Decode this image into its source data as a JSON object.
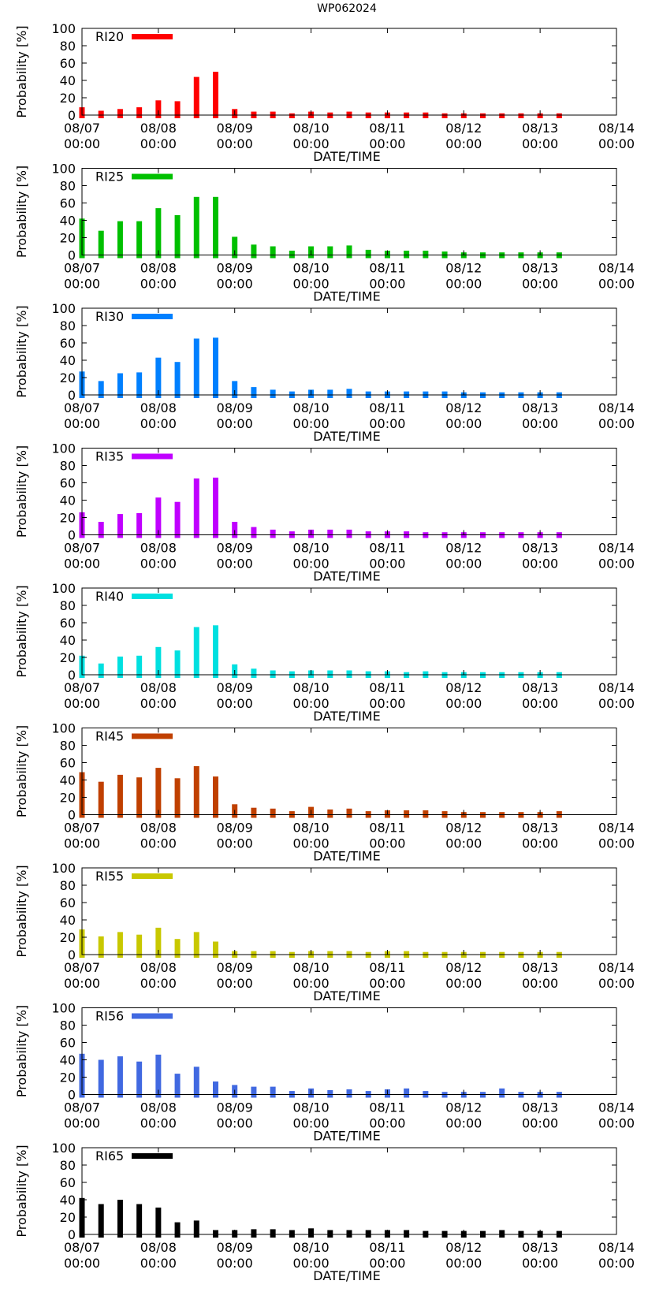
{
  "page": {
    "title": "WP062024"
  },
  "chart_data": [
    {
      "type": "bar",
      "series_name": "RI20",
      "color": "#ff0000",
      "x_start": "08/07 00:00",
      "x_step_hours": 6,
      "values": [
        9,
        5,
        7,
        9,
        17,
        16,
        44,
        50,
        7,
        4,
        4,
        2,
        4,
        3,
        4,
        3,
        3,
        3,
        3,
        2,
        2,
        2,
        2,
        2,
        2,
        2
      ],
      "xlabel": "DATE/TIME",
      "ylabel": "Probability [%]",
      "ylim": [
        0,
        100
      ],
      "yticks": [
        "0",
        "20",
        "40",
        "60",
        "80",
        "100"
      ],
      "xticks_date": [
        "08/07",
        "08/08",
        "08/09",
        "08/10",
        "08/11",
        "08/12",
        "08/13",
        "08/14"
      ],
      "xticks_time": [
        "00:00",
        "00:00",
        "00:00",
        "00:00",
        "00:00",
        "00:00",
        "00:00",
        "00:00"
      ],
      "legend_position": "top-left"
    },
    {
      "type": "bar",
      "series_name": "RI25",
      "color": "#00c000",
      "x_start": "08/07 00:00",
      "x_step_hours": 6,
      "values": [
        42,
        28,
        39,
        39,
        54,
        46,
        67,
        67,
        21,
        12,
        10,
        5,
        10,
        10,
        11,
        6,
        5,
        5,
        5,
        4,
        3,
        3,
        3,
        3,
        3,
        3
      ],
      "xlabel": "DATE/TIME",
      "ylabel": "Probability [%]",
      "ylim": [
        0,
        100
      ],
      "yticks": [
        "0",
        "20",
        "40",
        "60",
        "80",
        "100"
      ],
      "xticks_date": [
        "08/07",
        "08/08",
        "08/09",
        "08/10",
        "08/11",
        "08/12",
        "08/13",
        "08/14"
      ],
      "xticks_time": [
        "00:00",
        "00:00",
        "00:00",
        "00:00",
        "00:00",
        "00:00",
        "00:00",
        "00:00"
      ],
      "legend_position": "top-left"
    },
    {
      "type": "bar",
      "series_name": "RI30",
      "color": "#0080ff",
      "x_start": "08/07 00:00",
      "x_step_hours": 6,
      "values": [
        27,
        16,
        25,
        26,
        43,
        38,
        65,
        66,
        16,
        9,
        6,
        4,
        6,
        6,
        7,
        4,
        4,
        4,
        4,
        4,
        3,
        3,
        3,
        3,
        3,
        3
      ],
      "xlabel": "DATE/TIME",
      "ylabel": "Probability [%]",
      "ylim": [
        0,
        100
      ],
      "yticks": [
        "0",
        "20",
        "40",
        "60",
        "80",
        "100"
      ],
      "xticks_date": [
        "08/07",
        "08/08",
        "08/09",
        "08/10",
        "08/11",
        "08/12",
        "08/13",
        "08/14"
      ],
      "xticks_time": [
        "00:00",
        "00:00",
        "00:00",
        "00:00",
        "00:00",
        "00:00",
        "00:00",
        "00:00"
      ],
      "legend_position": "top-left"
    },
    {
      "type": "bar",
      "series_name": "RI35",
      "color": "#c000ff",
      "x_start": "08/07 00:00",
      "x_step_hours": 6,
      "values": [
        26,
        15,
        24,
        25,
        43,
        38,
        65,
        66,
        15,
        9,
        6,
        4,
        6,
        6,
        6,
        4,
        4,
        4,
        3,
        3,
        3,
        3,
        3,
        3,
        3,
        3
      ],
      "xlabel": "DATE/TIME",
      "ylabel": "Probability [%]",
      "ylim": [
        0,
        100
      ],
      "yticks": [
        "0",
        "20",
        "40",
        "60",
        "80",
        "100"
      ],
      "xticks_date": [
        "08/07",
        "08/08",
        "08/09",
        "08/10",
        "08/11",
        "08/12",
        "08/13",
        "08/14"
      ],
      "xticks_time": [
        "00:00",
        "00:00",
        "00:00",
        "00:00",
        "00:00",
        "00:00",
        "00:00",
        "00:00"
      ],
      "legend_position": "top-left"
    },
    {
      "type": "bar",
      "series_name": "RI40",
      "color": "#00e0e0",
      "x_start": "08/07 00:00",
      "x_step_hours": 6,
      "values": [
        22,
        13,
        21,
        22,
        32,
        28,
        55,
        57,
        12,
        7,
        5,
        4,
        5,
        5,
        5,
        4,
        4,
        3,
        4,
        3,
        3,
        3,
        3,
        3,
        3,
        3
      ],
      "xlabel": "DATE/TIME",
      "ylabel": "Probability [%]",
      "ylim": [
        0,
        100
      ],
      "yticks": [
        "0",
        "20",
        "40",
        "60",
        "80",
        "100"
      ],
      "xticks_date": [
        "08/07",
        "08/08",
        "08/09",
        "08/10",
        "08/11",
        "08/12",
        "08/13",
        "08/14"
      ],
      "xticks_time": [
        "00:00",
        "00:00",
        "00:00",
        "00:00",
        "00:00",
        "00:00",
        "00:00",
        "00:00"
      ],
      "legend_position": "top-left"
    },
    {
      "type": "bar",
      "series_name": "RI45",
      "color": "#c04000",
      "x_start": "08/07 00:00",
      "x_step_hours": 6,
      "values": [
        49,
        38,
        46,
        43,
        54,
        42,
        56,
        44,
        12,
        8,
        7,
        4,
        9,
        6,
        7,
        4,
        5,
        5,
        5,
        4,
        3,
        3,
        3,
        3,
        3,
        4
      ],
      "xlabel": "DATE/TIME",
      "ylabel": "Probability [%]",
      "ylim": [
        0,
        100
      ],
      "yticks": [
        "0",
        "20",
        "40",
        "60",
        "80",
        "100"
      ],
      "xticks_date": [
        "08/07",
        "08/08",
        "08/09",
        "08/10",
        "08/11",
        "08/12",
        "08/13",
        "08/14"
      ],
      "xticks_time": [
        "00:00",
        "00:00",
        "00:00",
        "00:00",
        "00:00",
        "00:00",
        "00:00",
        "00:00"
      ],
      "legend_position": "top-left"
    },
    {
      "type": "bar",
      "series_name": "RI55",
      "color": "#c8c800",
      "x_start": "08/07 00:00",
      "x_step_hours": 6,
      "values": [
        29,
        21,
        26,
        23,
        31,
        18,
        26,
        15,
        4,
        4,
        4,
        3,
        4,
        4,
        4,
        3,
        4,
        4,
        3,
        3,
        3,
        3,
        3,
        3,
        3,
        3
      ],
      "xlabel": "DATE/TIME",
      "ylabel": "Probability [%]",
      "ylim": [
        0,
        100
      ],
      "yticks": [
        "0",
        "20",
        "40",
        "60",
        "80",
        "100"
      ],
      "xticks_date": [
        "08/07",
        "08/08",
        "08/09",
        "08/10",
        "08/11",
        "08/12",
        "08/13",
        "08/14"
      ],
      "xticks_time": [
        "00:00",
        "00:00",
        "00:00",
        "00:00",
        "00:00",
        "00:00",
        "00:00",
        "00:00"
      ],
      "legend_position": "top-left"
    },
    {
      "type": "bar",
      "series_name": "RI56",
      "color": "#4169e1",
      "x_start": "08/07 00:00",
      "x_step_hours": 6,
      "values": [
        47,
        40,
        44,
        38,
        46,
        24,
        32,
        15,
        11,
        9,
        9,
        4,
        7,
        5,
        6,
        4,
        6,
        7,
        4,
        3,
        3,
        3,
        7,
        3,
        3,
        3
      ],
      "xlabel": "DATE/TIME",
      "ylabel": "Probability [%]",
      "ylim": [
        0,
        100
      ],
      "yticks": [
        "0",
        "20",
        "40",
        "60",
        "80",
        "100"
      ],
      "xticks_date": [
        "08/07",
        "08/08",
        "08/09",
        "08/10",
        "08/11",
        "08/12",
        "08/13",
        "08/14"
      ],
      "xticks_time": [
        "00:00",
        "00:00",
        "00:00",
        "00:00",
        "00:00",
        "00:00",
        "00:00",
        "00:00"
      ],
      "legend_position": "top-left"
    },
    {
      "type": "bar",
      "series_name": "RI65",
      "color": "#000000",
      "x_start": "08/07 00:00",
      "x_step_hours": 6,
      "values": [
        42,
        35,
        40,
        35,
        31,
        14,
        16,
        5,
        5,
        6,
        6,
        5,
        7,
        5,
        5,
        5,
        5,
        5,
        4,
        4,
        4,
        4,
        5,
        4,
        4,
        4
      ],
      "xlabel": "DATE/TIME",
      "ylabel": "Probability [%]",
      "ylim": [
        0,
        100
      ],
      "yticks": [
        "0",
        "20",
        "40",
        "60",
        "80",
        "100"
      ],
      "xticks_date": [
        "08/07",
        "08/08",
        "08/09",
        "08/10",
        "08/11",
        "08/12",
        "08/13",
        "08/14"
      ],
      "xticks_time": [
        "00:00",
        "00:00",
        "00:00",
        "00:00",
        "00:00",
        "00:00",
        "00:00",
        "00:00"
      ],
      "legend_position": "top-left"
    }
  ]
}
